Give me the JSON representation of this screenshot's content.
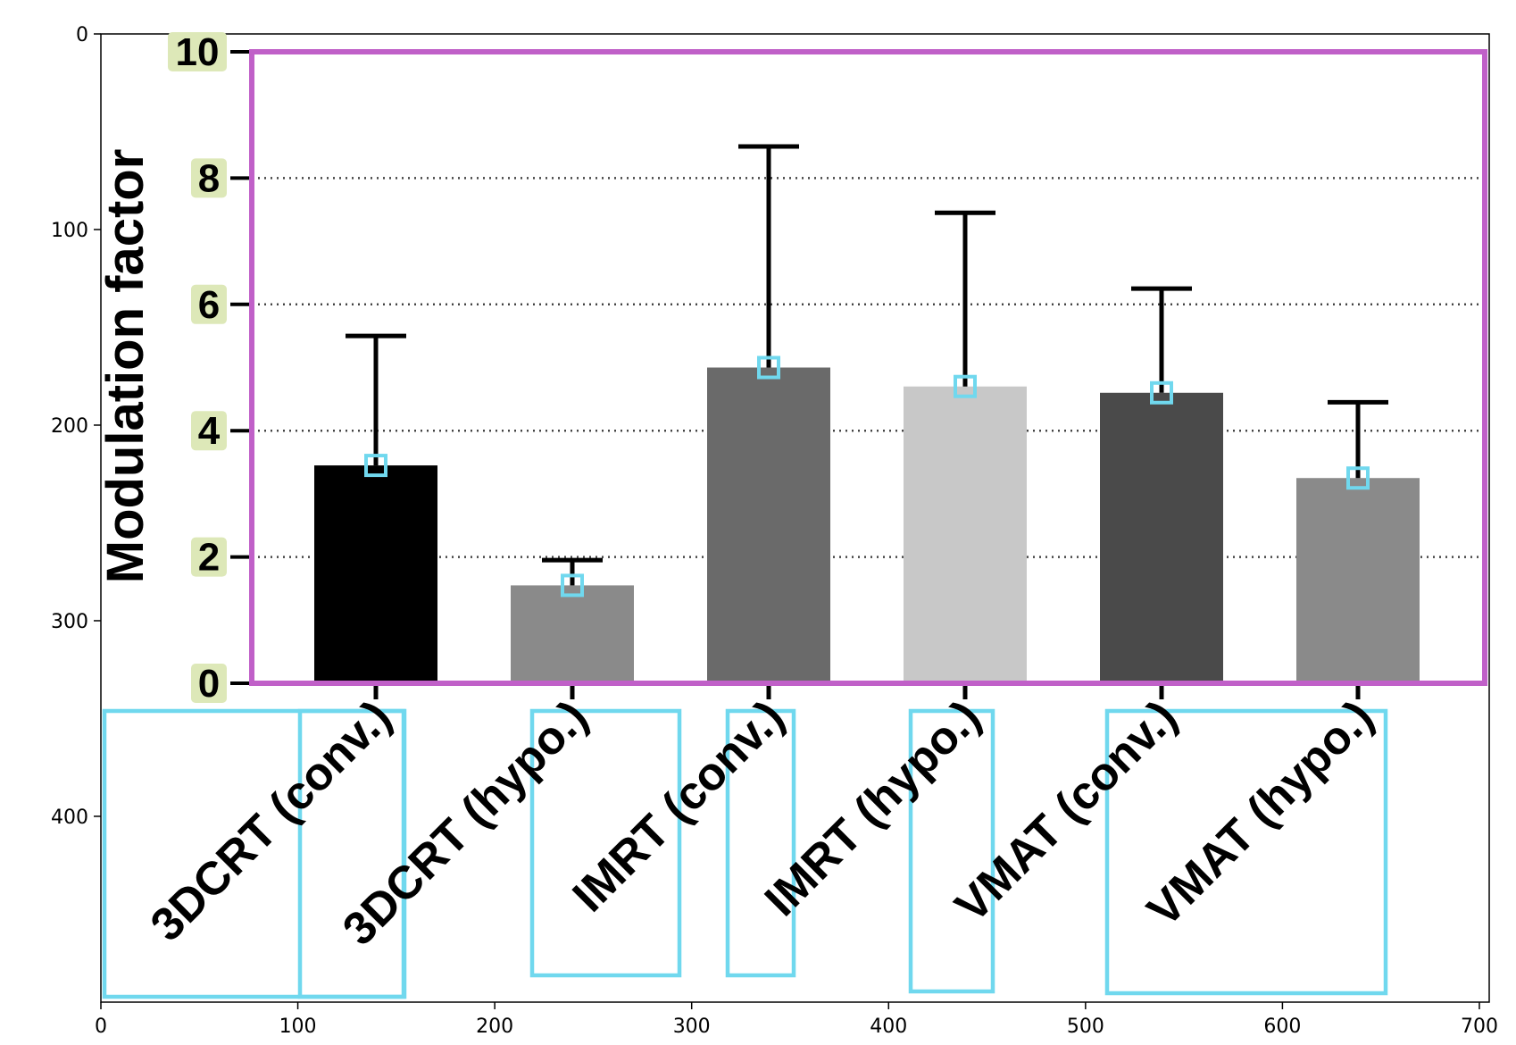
{
  "chart_data": {
    "type": "bar",
    "ylabel": "Modulation factor",
    "xlabel": "",
    "title": "",
    "ylim": [
      0,
      10
    ],
    "yticks": [
      0,
      2,
      4,
      6,
      8,
      10
    ],
    "grid": "horizontal dotted at 2, 4, 6, 8",
    "categories": [
      "3DCRT (conv.)",
      "3DCRT (hypo.)",
      "IMRT (conv.)",
      "IMRT (hypo.)",
      "VMAT (conv.)",
      "VMAT (hypo.)"
    ],
    "values": [
      3.45,
      1.55,
      5.0,
      4.7,
      4.6,
      3.25
    ],
    "error_upper": [
      5.5,
      1.95,
      8.5,
      7.45,
      6.25,
      4.45
    ],
    "bar_colors": [
      "#000000",
      "#8a8a8a",
      "#6a6a6a",
      "#c8c8c8",
      "#4a4a4a",
      "#8a8a8a"
    ],
    "pixel_axes": {
      "x_ticks": [
        0,
        100,
        200,
        300,
        400,
        500,
        600,
        700
      ],
      "y_ticks": [
        0,
        100,
        200,
        300,
        400
      ],
      "xlim": [
        0,
        705
      ],
      "ylim": [
        0,
        495
      ]
    }
  },
  "colors": {
    "plot_frame": "#c060c8",
    "annotation_box": "#70d8ee",
    "ytick_highlight": "#dde8b8",
    "grid": "#444444"
  }
}
